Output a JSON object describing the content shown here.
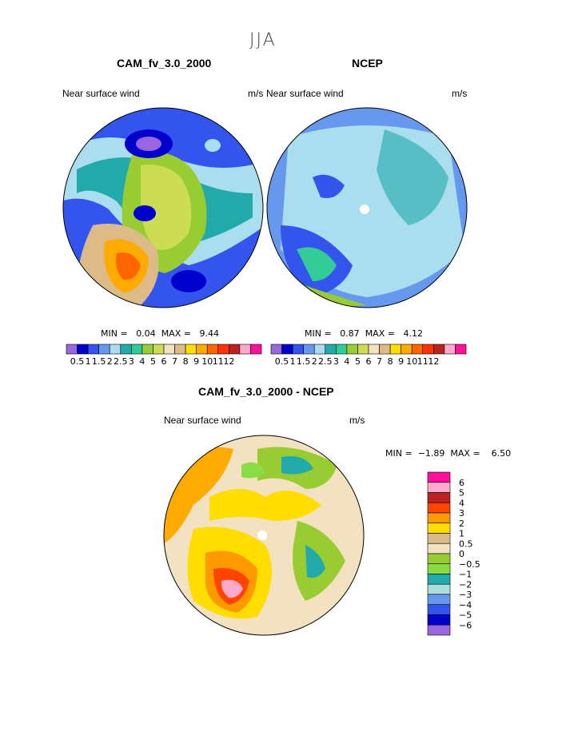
{
  "season": "JJA",
  "left": {
    "title": "CAM_fv_3.0_2000",
    "variable": "Near surface wind",
    "units": "m/s",
    "min_label": "MIN =",
    "min_value": "0.04",
    "max_label": "MAX =",
    "max_value": "9.44"
  },
  "right": {
    "title": "NCEP",
    "variable": "Near surface wind",
    "units": "m/s",
    "min_label": "MIN =",
    "min_value": "0.87",
    "max_label": "MAX =",
    "max_value": "4.12"
  },
  "diff": {
    "title": "CAM_fv_3.0_2000 - NCEP",
    "variable": "Near surface wind",
    "units": "m/s",
    "min_label": "MIN =",
    "min_value": "−1.89",
    "max_label": "MAX =",
    "max_value": "6.50"
  },
  "field_colorbar": {
    "colors": [
      "#9966dd",
      "#0000cc",
      "#3355ee",
      "#6699ee",
      "#aaddee",
      "#22aaaa",
      "#33cc99",
      "#99cc33",
      "#ccdd55",
      "#f2e2c2",
      "#ddbb88",
      "#ffdd00",
      "#ffaa00",
      "#ff6600",
      "#ff3300",
      "#bb2222",
      "#ffaacc",
      "#ff1199"
    ],
    "labels": [
      "0.5",
      "1",
      "1.5",
      "2",
      "2.5",
      "3",
      "4",
      "5",
      "6",
      "7",
      "8",
      "9",
      "10",
      "11",
      "12"
    ]
  },
  "diff_colorbar": {
    "colors": [
      "#ff1199",
      "#ffaacc",
      "#bb2222",
      "#ff4400",
      "#ff9900",
      "#ffdd00",
      "#ddbb88",
      "#f2e2c2",
      "#99cc33",
      "#88dd44",
      "#22aaaa",
      "#aadddd",
      "#6699ee",
      "#3355ee",
      "#0000cc",
      "#9966dd"
    ],
    "labels": [
      "6",
      "5",
      "4",
      "3",
      "2",
      "1",
      "0.5",
      "0",
      "−0.5",
      "−1",
      "−2",
      "−3",
      "−4",
      "−5",
      "−6"
    ]
  }
}
